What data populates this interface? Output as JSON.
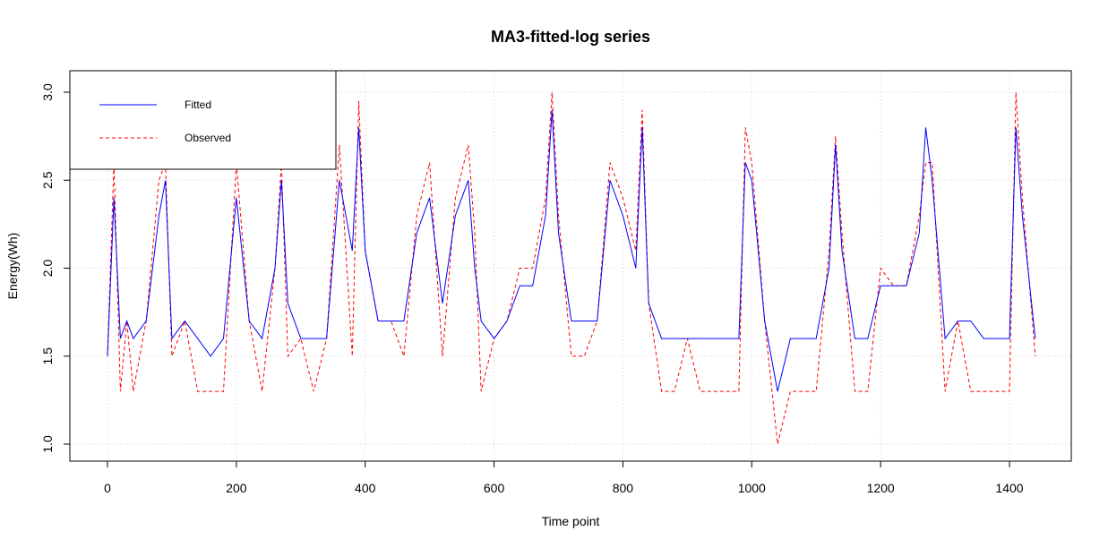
{
  "chart_data": {
    "type": "line",
    "title": "MA3-fitted-log series",
    "xlabel": "Time point",
    "ylabel": "Energy(Wh)",
    "xlim": [
      0,
      1440
    ],
    "ylim": [
      1.0,
      3.0
    ],
    "x_ticks": [
      "0",
      "200",
      "400",
      "600",
      "800",
      "1000",
      "1200",
      "1400"
    ],
    "y_ticks": [
      "1.0",
      "1.5",
      "2.0",
      "2.5",
      "3.0"
    ],
    "grid": true,
    "legend_position": "top-left",
    "series": [
      {
        "name": "Fitted",
        "color": "#0000ff",
        "line_style": "solid",
        "x": [
          0,
          10,
          20,
          30,
          40,
          60,
          80,
          90,
          100,
          120,
          140,
          160,
          180,
          200,
          220,
          240,
          260,
          270,
          280,
          300,
          320,
          340,
          360,
          380,
          390,
          400,
          420,
          440,
          460,
          480,
          500,
          520,
          540,
          560,
          570,
          580,
          600,
          620,
          640,
          660,
          680,
          690,
          700,
          720,
          740,
          760,
          780,
          800,
          820,
          830,
          840,
          860,
          880,
          900,
          920,
          940,
          960,
          980,
          990,
          1000,
          1020,
          1040,
          1060,
          1080,
          1100,
          1120,
          1130,
          1140,
          1160,
          1180,
          1200,
          1220,
          1240,
          1260,
          1270,
          1280,
          1300,
          1320,
          1340,
          1360,
          1380,
          1400,
          1410,
          1420,
          1440
        ],
        "y": [
          1.5,
          2.4,
          1.6,
          1.7,
          1.6,
          1.7,
          2.3,
          2.5,
          1.6,
          1.7,
          1.6,
          1.5,
          1.6,
          2.4,
          1.7,
          1.6,
          2.0,
          2.5,
          1.8,
          1.6,
          1.6,
          1.6,
          2.5,
          2.1,
          2.8,
          2.1,
          1.7,
          1.7,
          1.7,
          2.2,
          2.4,
          1.8,
          2.3,
          2.5,
          2.0,
          1.7,
          1.6,
          1.7,
          1.9,
          1.9,
          2.3,
          2.9,
          2.2,
          1.7,
          1.7,
          1.7,
          2.5,
          2.3,
          2.0,
          2.8,
          1.8,
          1.6,
          1.6,
          1.6,
          1.6,
          1.6,
          1.6,
          1.6,
          2.6,
          2.5,
          1.7,
          1.3,
          1.6,
          1.6,
          1.6,
          2.0,
          2.7,
          2.1,
          1.6,
          1.6,
          1.9,
          1.9,
          1.9,
          2.2,
          2.8,
          2.5,
          1.6,
          1.7,
          1.7,
          1.6,
          1.6,
          1.6,
          2.8,
          2.3,
          1.6
        ]
      },
      {
        "name": "Observed",
        "color": "#ff0000",
        "line_style": "dashed",
        "x": [
          0,
          10,
          20,
          30,
          40,
          60,
          80,
          90,
          100,
          120,
          140,
          160,
          180,
          200,
          220,
          240,
          260,
          270,
          280,
          300,
          320,
          340,
          360,
          380,
          390,
          400,
          420,
          440,
          460,
          480,
          500,
          520,
          540,
          560,
          570,
          580,
          600,
          620,
          640,
          660,
          680,
          690,
          700,
          720,
          740,
          760,
          780,
          800,
          820,
          830,
          840,
          860,
          880,
          900,
          920,
          940,
          960,
          980,
          990,
          1000,
          1020,
          1040,
          1060,
          1080,
          1100,
          1120,
          1130,
          1140,
          1160,
          1180,
          1200,
          1220,
          1240,
          1260,
          1270,
          1280,
          1300,
          1320,
          1340,
          1360,
          1380,
          1400,
          1410,
          1420,
          1440
        ],
        "y": [
          1.5,
          2.6,
          1.3,
          1.7,
          1.3,
          1.7,
          2.5,
          2.6,
          1.5,
          1.7,
          1.3,
          1.3,
          1.3,
          2.6,
          1.7,
          1.3,
          2.0,
          2.6,
          1.5,
          1.6,
          1.3,
          1.6,
          2.7,
          1.5,
          2.95,
          2.1,
          1.7,
          1.7,
          1.5,
          2.3,
          2.6,
          1.5,
          2.4,
          2.7,
          2.2,
          1.3,
          1.6,
          1.7,
          2.0,
          2.0,
          2.4,
          3.0,
          2.3,
          1.5,
          1.5,
          1.7,
          2.6,
          2.4,
          2.1,
          2.9,
          1.8,
          1.3,
          1.3,
          1.6,
          1.3,
          1.3,
          1.3,
          1.3,
          2.8,
          2.6,
          1.7,
          1.0,
          1.3,
          1.3,
          1.3,
          2.1,
          2.75,
          2.2,
          1.3,
          1.3,
          2.0,
          1.9,
          1.9,
          2.3,
          2.6,
          2.6,
          1.3,
          1.7,
          1.3,
          1.3,
          1.3,
          1.3,
          3.0,
          2.4,
          1.5
        ]
      }
    ]
  }
}
